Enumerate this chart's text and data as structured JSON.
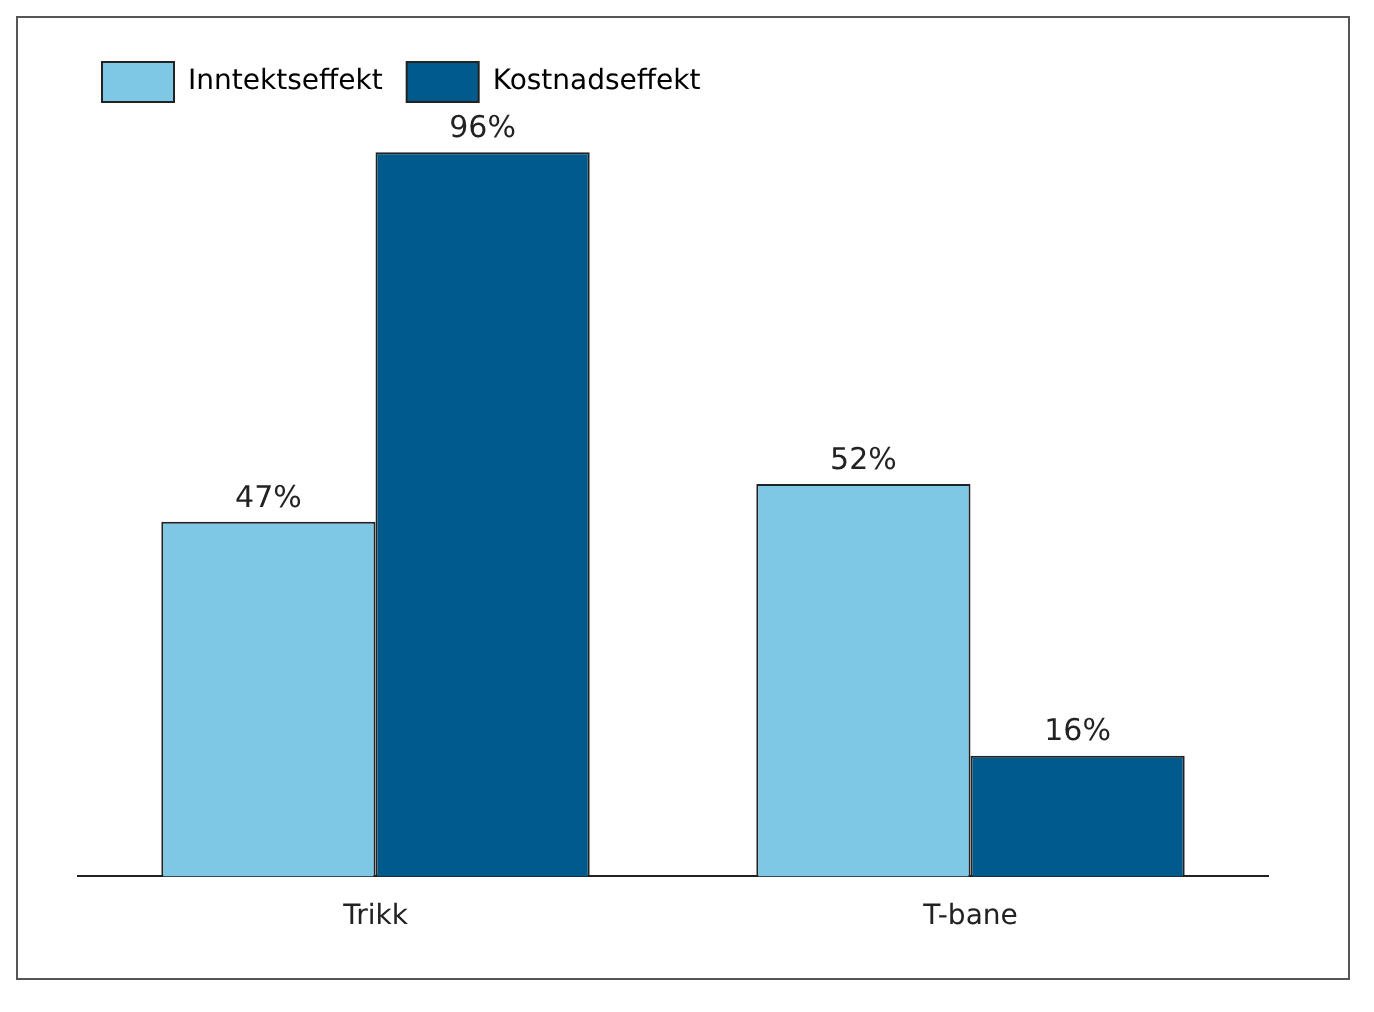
{
  "chart_data": {
    "type": "bar",
    "categories": [
      "Trikk",
      "T-bane"
    ],
    "series": [
      {
        "name": "Inntektseffekt",
        "color": "#7ec8e6",
        "values": [
          47,
          52
        ],
        "value_labels": [
          "47%",
          "52%"
        ]
      },
      {
        "name": "Kostnadseffekt",
        "color": "#005a8c",
        "values": [
          96,
          16
        ],
        "value_labels": [
          "96%",
          "16%"
        ]
      }
    ],
    "legend": "top left",
    "grid": false
  }
}
